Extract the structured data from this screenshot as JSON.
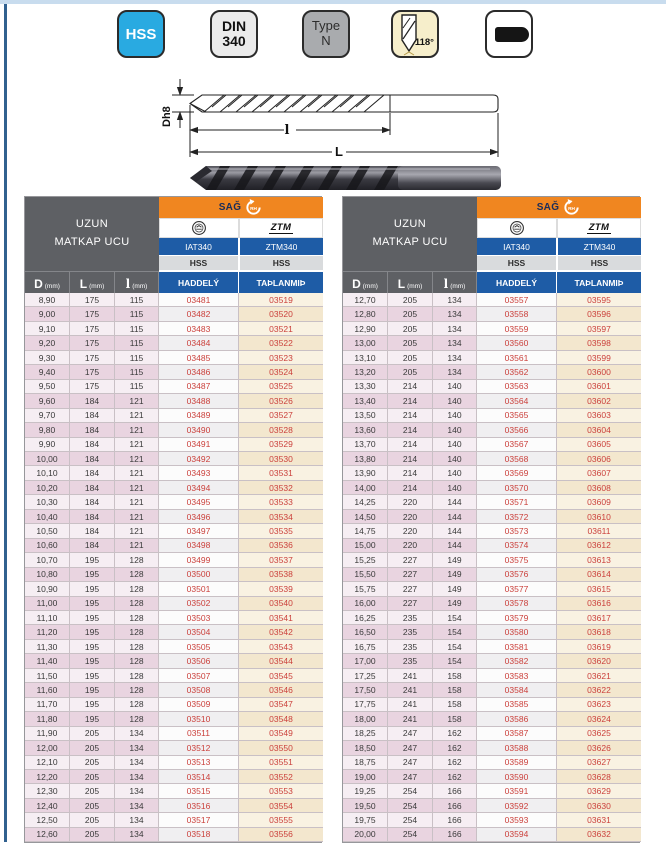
{
  "badges": [
    {
      "label": "HSS"
    },
    {
      "lines": [
        "DIN",
        "340"
      ]
    },
    {
      "lines": [
        "Type",
        "N"
      ]
    },
    {
      "label": "118°",
      "icon": "drill-point-icon"
    },
    {
      "icon": "cylindrical-shank-icon"
    }
  ],
  "diagram": {
    "diameter_label": "Dh8",
    "flute_length_label": "l",
    "total_length_label": "L"
  },
  "table_header": {
    "title_line1": "UZUN",
    "title_line2": "MATKAP UCU",
    "direction_label": "SAĞ",
    "direction_icon_text": "RH",
    "brand2_logo_text": "ZTM",
    "brand1": "IAT340",
    "brand2": "ZTM340",
    "material1": "HSS",
    "material2": "HSS",
    "col_d": "D",
    "col_l": "L",
    "col_i": "l",
    "unit": "(mm)",
    "col_code1": "HADDELÝ",
    "col_code2": "TAÞLANMIÞ"
  },
  "colors": {
    "accent_orange": "#f08620",
    "header_blue": "#1e5ca6",
    "header_gray": "#5e6064",
    "badge_blue": "#29aae1",
    "code_red": "#cb413c"
  },
  "tables": {
    "left": {
      "rows": [
        [
          "8,90",
          "175",
          "115",
          "03481",
          "03519"
        ],
        [
          "9,00",
          "175",
          "115",
          "03482",
          "03520"
        ],
        [
          "9,10",
          "175",
          "115",
          "03483",
          "03521"
        ],
        [
          "9,20",
          "175",
          "115",
          "03484",
          "03522"
        ],
        [
          "9,30",
          "175",
          "115",
          "03485",
          "03523"
        ],
        [
          "9,40",
          "175",
          "115",
          "03486",
          "03524"
        ],
        [
          "9,50",
          "175",
          "115",
          "03487",
          "03525"
        ],
        [
          "9,60",
          "184",
          "121",
          "03488",
          "03526"
        ],
        [
          "9,70",
          "184",
          "121",
          "03489",
          "03527"
        ],
        [
          "9,80",
          "184",
          "121",
          "03490",
          "03528"
        ],
        [
          "9,90",
          "184",
          "121",
          "03491",
          "03529"
        ],
        [
          "10,00",
          "184",
          "121",
          "03492",
          "03530"
        ],
        [
          "10,10",
          "184",
          "121",
          "03493",
          "03531"
        ],
        [
          "10,20",
          "184",
          "121",
          "03494",
          "03532"
        ],
        [
          "10,30",
          "184",
          "121",
          "03495",
          "03533"
        ],
        [
          "10,40",
          "184",
          "121",
          "03496",
          "03534"
        ],
        [
          "10,50",
          "184",
          "121",
          "03497",
          "03535"
        ],
        [
          "10,60",
          "184",
          "121",
          "03498",
          "03536"
        ],
        [
          "10,70",
          "195",
          "128",
          "03499",
          "03537"
        ],
        [
          "10,80",
          "195",
          "128",
          "03500",
          "03538"
        ],
        [
          "10,90",
          "195",
          "128",
          "03501",
          "03539"
        ],
        [
          "11,00",
          "195",
          "128",
          "03502",
          "03540"
        ],
        [
          "11,10",
          "195",
          "128",
          "03503",
          "03541"
        ],
        [
          "11,20",
          "195",
          "128",
          "03504",
          "03542"
        ],
        [
          "11,30",
          "195",
          "128",
          "03505",
          "03543"
        ],
        [
          "11,40",
          "195",
          "128",
          "03506",
          "03544"
        ],
        [
          "11,50",
          "195",
          "128",
          "03507",
          "03545"
        ],
        [
          "11,60",
          "195",
          "128",
          "03508",
          "03546"
        ],
        [
          "11,70",
          "195",
          "128",
          "03509",
          "03547"
        ],
        [
          "11,80",
          "195",
          "128",
          "03510",
          "03548"
        ],
        [
          "11,90",
          "205",
          "134",
          "03511",
          "03549"
        ],
        [
          "12,00",
          "205",
          "134",
          "03512",
          "03550"
        ],
        [
          "12,10",
          "205",
          "134",
          "03513",
          "03551"
        ],
        [
          "12,20",
          "205",
          "134",
          "03514",
          "03552"
        ],
        [
          "12,30",
          "205",
          "134",
          "03515",
          "03553"
        ],
        [
          "12,40",
          "205",
          "134",
          "03516",
          "03554"
        ],
        [
          "12,50",
          "205",
          "134",
          "03517",
          "03555"
        ],
        [
          "12,60",
          "205",
          "134",
          "03518",
          "03556"
        ]
      ]
    },
    "right": {
      "rows": [
        [
          "12,70",
          "205",
          "134",
          "03557",
          "03595"
        ],
        [
          "12,80",
          "205",
          "134",
          "03558",
          "03596"
        ],
        [
          "12,90",
          "205",
          "134",
          "03559",
          "03597"
        ],
        [
          "13,00",
          "205",
          "134",
          "03560",
          "03598"
        ],
        [
          "13,10",
          "205",
          "134",
          "03561",
          "03599"
        ],
        [
          "13,20",
          "205",
          "134",
          "03562",
          "03600"
        ],
        [
          "13,30",
          "214",
          "140",
          "03563",
          "03601"
        ],
        [
          "13,40",
          "214",
          "140",
          "03564",
          "03602"
        ],
        [
          "13,50",
          "214",
          "140",
          "03565",
          "03603"
        ],
        [
          "13,60",
          "214",
          "140",
          "03566",
          "03604"
        ],
        [
          "13,70",
          "214",
          "140",
          "03567",
          "03605"
        ],
        [
          "13,80",
          "214",
          "140",
          "03568",
          "03606"
        ],
        [
          "13,90",
          "214",
          "140",
          "03569",
          "03607"
        ],
        [
          "14,00",
          "214",
          "140",
          "03570",
          "03608"
        ],
        [
          "14,25",
          "220",
          "144",
          "03571",
          "03609"
        ],
        [
          "14,50",
          "220",
          "144",
          "03572",
          "03610"
        ],
        [
          "14,75",
          "220",
          "144",
          "03573",
          "03611"
        ],
        [
          "15,00",
          "220",
          "144",
          "03574",
          "03612"
        ],
        [
          "15,25",
          "227",
          "149",
          "03575",
          "03613"
        ],
        [
          "15,50",
          "227",
          "149",
          "03576",
          "03614"
        ],
        [
          "15,75",
          "227",
          "149",
          "03577",
          "03615"
        ],
        [
          "16,00",
          "227",
          "149",
          "03578",
          "03616"
        ],
        [
          "16,25",
          "235",
          "154",
          "03579",
          "03617"
        ],
        [
          "16,50",
          "235",
          "154",
          "03580",
          "03618"
        ],
        [
          "16,75",
          "235",
          "154",
          "03581",
          "03619"
        ],
        [
          "17,00",
          "235",
          "154",
          "03582",
          "03620"
        ],
        [
          "17,25",
          "241",
          "158",
          "03583",
          "03621"
        ],
        [
          "17,50",
          "241",
          "158",
          "03584",
          "03622"
        ],
        [
          "17,75",
          "241",
          "158",
          "03585",
          "03623"
        ],
        [
          "18,00",
          "241",
          "158",
          "03586",
          "03624"
        ],
        [
          "18,25",
          "247",
          "162",
          "03587",
          "03625"
        ],
        [
          "18,50",
          "247",
          "162",
          "03588",
          "03626"
        ],
        [
          "18,75",
          "247",
          "162",
          "03589",
          "03627"
        ],
        [
          "19,00",
          "247",
          "162",
          "03590",
          "03628"
        ],
        [
          "19,25",
          "254",
          "166",
          "03591",
          "03629"
        ],
        [
          "19,50",
          "254",
          "166",
          "03592",
          "03630"
        ],
        [
          "19,75",
          "254",
          "166",
          "03593",
          "03631"
        ],
        [
          "20,00",
          "254",
          "166",
          "03594",
          "03632"
        ]
      ]
    }
  }
}
